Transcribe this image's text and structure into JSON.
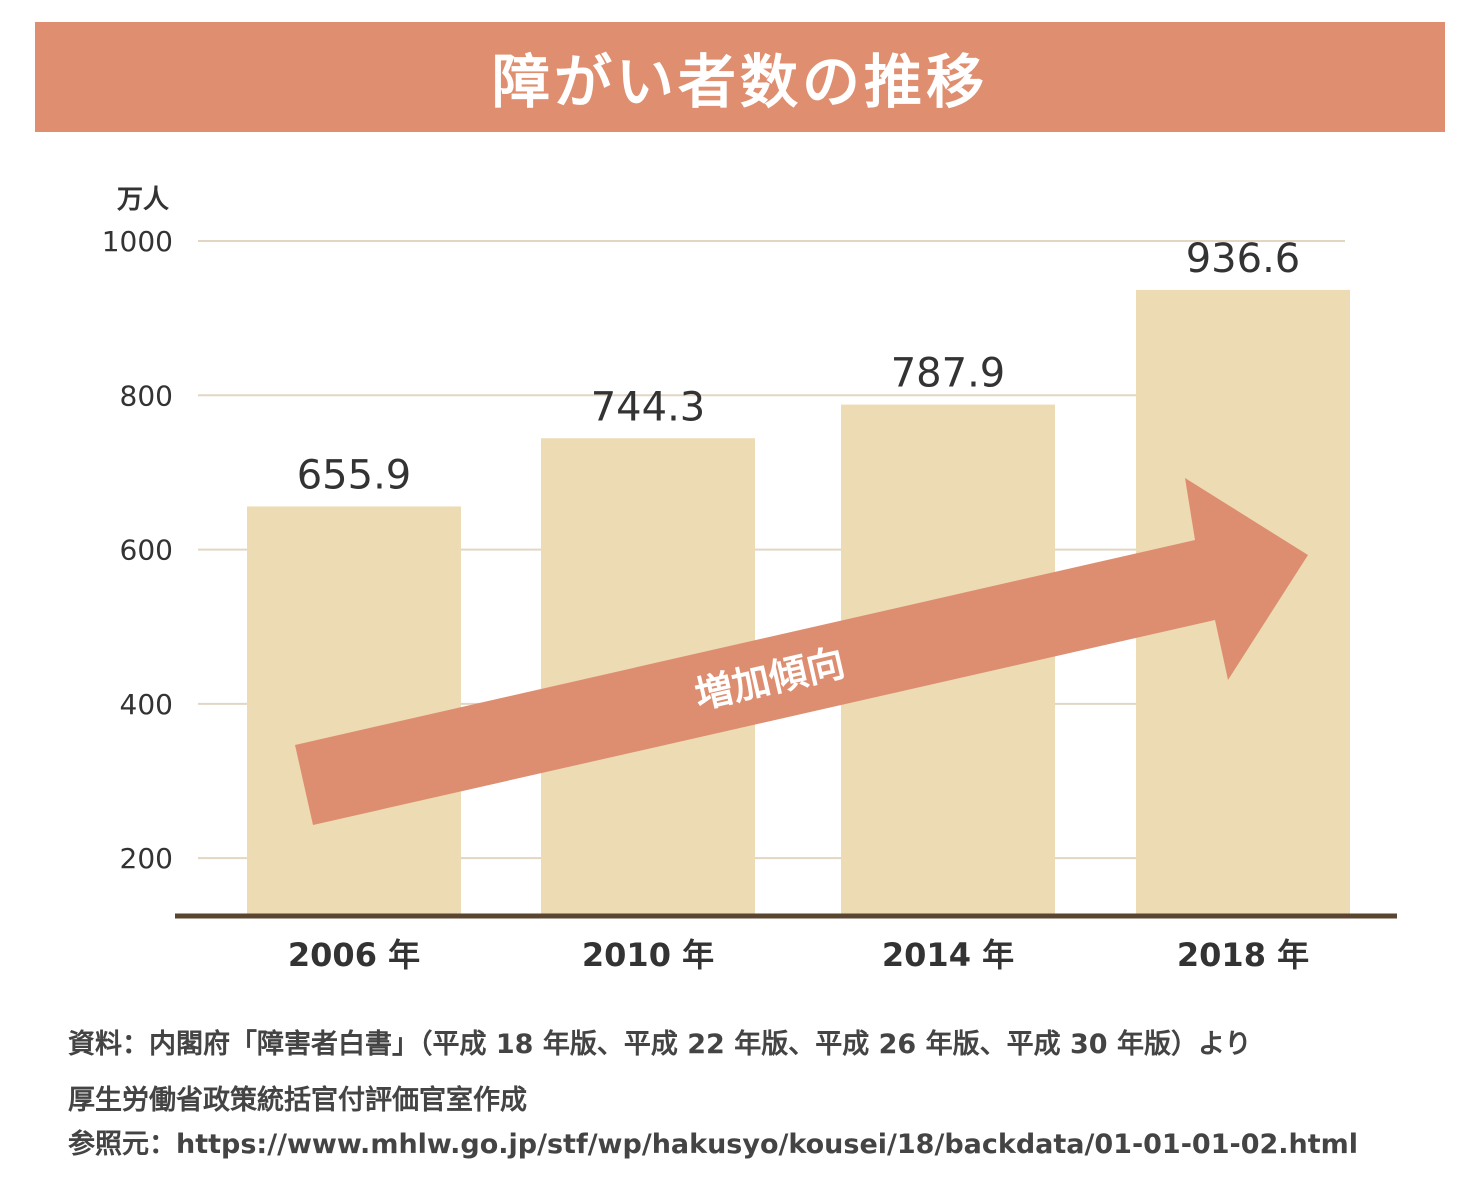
{
  "chart_data": {
    "type": "bar",
    "title": "障がい者数の推移",
    "ylabel": "万人",
    "xlabel": "",
    "categories": [
      "2006 年",
      "2010 年",
      "2014 年",
      "2018 年"
    ],
    "values": [
      655.9,
      744.3,
      787.9,
      936.6
    ],
    "data_labels": [
      "655.9",
      "744.3",
      "787.9",
      "936.6"
    ],
    "yticks": [
      200,
      400,
      600,
      800,
      1000
    ],
    "ylim": [
      125,
      1000
    ],
    "grid": true,
    "annotation": "増加傾向",
    "colors": {
      "banner": "#df8f70",
      "bar": "#eddbb3",
      "arrow": "#de8e70",
      "baseline": "#5a4530",
      "grid": "#e2d6c3"
    }
  },
  "footnotes": {
    "source": "資料：内閣府「障害者白書」（平成 18 年版、平成 22 年版、平成 26 年版、平成 30 年版）より",
    "author": "厚生労働省政策統括官付評価官室作成",
    "reference": "参照元：https://www.mhlw.go.jp/stf/wp/hakusyo/kousei/18/backdata/01-01-01-02.html"
  }
}
